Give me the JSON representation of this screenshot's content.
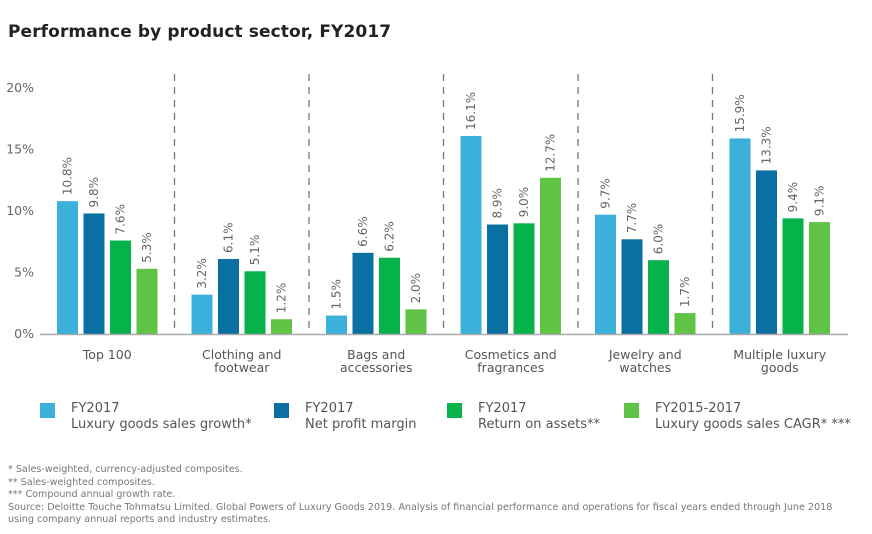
{
  "title": "Performance by product sector, FY2017",
  "chart_data": {
    "type": "bar",
    "title": "Performance by product sector, FY2017",
    "xlabel": "",
    "ylabel": "",
    "ylim": [
      0,
      20
    ],
    "yticks": [
      0,
      5,
      10,
      15,
      20
    ],
    "ytick_labels": [
      "0%",
      "5%",
      "10%",
      "15%",
      "20%"
    ],
    "grid": false,
    "group_separators": "dashed",
    "categories": [
      [
        "Top 100"
      ],
      [
        "Clothing and",
        "footwear"
      ],
      [
        "Bags and",
        "accessories"
      ],
      [
        "Cosmetics and",
        "fragrances"
      ],
      [
        "Jewelry and",
        "watches"
      ],
      [
        "Multiple luxury",
        "goods"
      ]
    ],
    "series": [
      {
        "name": "FY2017 Luxury goods sales growth*",
        "line1": "FY2017",
        "line2": "Luxury goods sales growth*",
        "color": "#3BB0DB",
        "values": [
          10.8,
          3.2,
          1.5,
          16.1,
          9.7,
          15.9
        ]
      },
      {
        "name": "FY2017 Net profit margin",
        "line1": "FY2017",
        "line2": "Net profit margin",
        "color": "#0A6FA2",
        "values": [
          9.8,
          6.1,
          6.6,
          8.9,
          7.7,
          13.3
        ]
      },
      {
        "name": "FY2017 Return on assets**",
        "line1": "FY2017",
        "line2": "Return on assets**",
        "color": "#05B34A",
        "values": [
          7.6,
          5.1,
          6.2,
          9.0,
          6.0,
          9.4
        ]
      },
      {
        "name": "FY2015-2017 Luxury goods sales CAGR* ***",
        "line1": "FY2015-2017",
        "line2": "Luxury goods sales CAGR* ***",
        "color": "#5FC446",
        "values": [
          5.3,
          1.2,
          2.0,
          12.7,
          1.7,
          9.1
        ]
      }
    ],
    "value_format": "{v}%",
    "legend": "bottom"
  },
  "notes": [
    "* Sales-weighted, currency-adjusted composites.",
    "** Sales-weighted composites.",
    "*** Compound annual growth rate.",
    "Source: Deloitte Touche Tohmatsu Limited. Global Powers of Luxury Goods 2019. Analysis of financial performance and operations for fiscal years ended through June 2018",
    "using company annual reports and industry estimates."
  ]
}
